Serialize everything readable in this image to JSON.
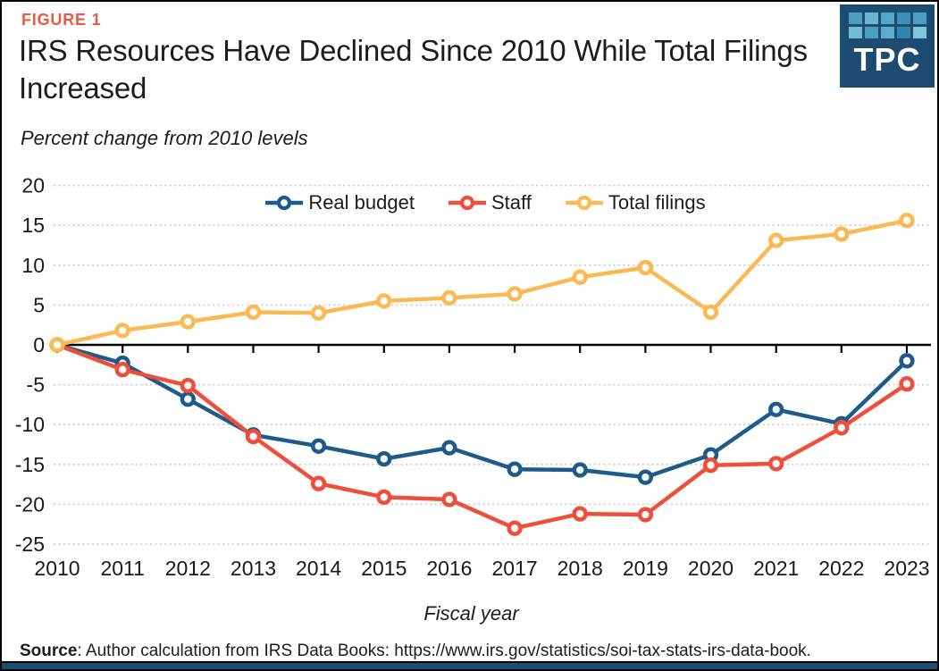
{
  "figure_label": "FIGURE 1",
  "title": "IRS Resources Have Declined Since 2010 While Total Filings Increased",
  "subtitle": "Percent change from 2010 levels",
  "logo": {
    "text": "TPC",
    "bg_color": "#1d4b72",
    "square_colors": [
      "#4c9dbe",
      "#6ab5d1",
      "#54a7c7",
      "#3a90b5",
      "#4c9dbe",
      "#72bcd6",
      "#4c9dbe",
      "#5fadcb",
      "#2f85ac",
      "#7fc6dd"
    ]
  },
  "source_label": "Source",
  "source_text": ": Author calculation from IRS Data Books: https://www.irs.gov/statistics/soi-tax-stats-irs-data-book.",
  "colors": {
    "accent_coral": "#ee5742",
    "grid": "#c9c9c9",
    "axis": "#000000",
    "footer_bar": "#1e4d74"
  },
  "chart_data": {
    "type": "line",
    "x": [
      2010,
      2011,
      2012,
      2013,
      2014,
      2015,
      2016,
      2017,
      2018,
      2019,
      2020,
      2021,
      2022,
      2023
    ],
    "series": [
      {
        "name": "Real budget",
        "color": "#1e5b8a",
        "values": [
          0,
          -2.3,
          -6.8,
          -11.3,
          -12.7,
          -14.3,
          -12.9,
          -15.6,
          -15.7,
          -16.6,
          -13.8,
          -8.1,
          -9.9,
          -2.0
        ]
      },
      {
        "name": "Staff",
        "color": "#ee4f3b",
        "values": [
          0,
          -3.1,
          -5.1,
          -11.5,
          -17.4,
          -19.1,
          -19.4,
          -23.0,
          -21.2,
          -21.3,
          -15.1,
          -14.9,
          -10.4,
          -4.9
        ]
      },
      {
        "name": "Total filings",
        "color": "#fbb953",
        "values": [
          0,
          1.8,
          2.9,
          4.1,
          4.0,
          5.5,
          5.9,
          6.4,
          8.5,
          9.7,
          4.1,
          13.1,
          13.9,
          15.6
        ]
      }
    ],
    "title": "IRS Resources Have Declined Since 2010 While Total Filings Increased",
    "subtitle": "Percent change from 2010 levels",
    "xlabel": "Fiscal year",
    "ylabel": "",
    "ylim": [
      -25,
      20
    ],
    "yticks": [
      20,
      15,
      10,
      5,
      0,
      -5,
      -10,
      -15,
      -20,
      -25
    ],
    "grid": "horizontal-dotted",
    "legend_position": "top-center"
  }
}
